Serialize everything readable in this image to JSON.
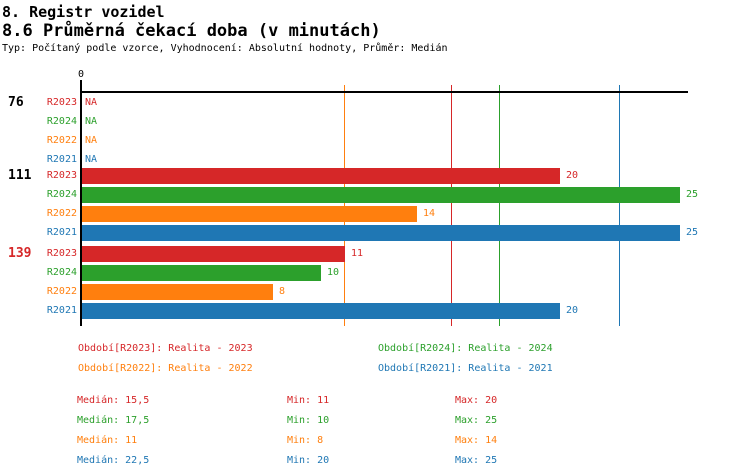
{
  "header": {
    "title": "8. Registr vozidel",
    "subtitle": "8.6 Průměrná čekací doba (v minutách)",
    "meta": "Typ: Počítaný podle vzorce, Vyhodnocení: Absolutní hodnoty, Průměr: Medián"
  },
  "chart_data": {
    "type": "bar",
    "orientation": "horizontal",
    "title": "8.6 Průměrná čekací doba (v minutách)",
    "xlabel": "",
    "ylabel": "",
    "xlim": [
      0,
      25.4
    ],
    "x_axis_zero_label": "0",
    "na_text": "NA",
    "median_reference_lines": true,
    "series": [
      {
        "name": "R2023",
        "color": "#d62728",
        "median": 15.5,
        "min": 11,
        "max": 20
      },
      {
        "name": "R2024",
        "color": "#2ca02c",
        "median": 17.5,
        "min": 10,
        "max": 25
      },
      {
        "name": "R2022",
        "color": "#ff7f0e",
        "median": 11,
        "min": 8,
        "max": 14
      },
      {
        "name": "R2021",
        "color": "#1f77b4",
        "median": 22.5,
        "min": 20,
        "max": 25
      }
    ],
    "groups": [
      {
        "label": "76",
        "label_color": "#000000",
        "values": [
          null,
          null,
          null,
          null
        ],
        "value_labels": [
          "NA",
          "NA",
          "NA",
          "NA"
        ]
      },
      {
        "label": "111",
        "label_color": "#000000",
        "values": [
          20,
          25,
          14,
          25
        ],
        "value_labels": [
          "20",
          "25",
          "14",
          "25"
        ]
      },
      {
        "label": "139",
        "label_color": "#d62728",
        "values": [
          11,
          10,
          8,
          20
        ],
        "value_labels": [
          "11",
          "10",
          "8",
          "20"
        ]
      }
    ]
  },
  "legend": {
    "items": [
      {
        "text": "Období[R2023]: Realita - 2023",
        "color": "#d62728",
        "row": 0,
        "col": 0
      },
      {
        "text": "Období[R2024]: Realita - 2024",
        "color": "#2ca02c",
        "row": 0,
        "col": 1
      },
      {
        "text": "Období[R2022]: Realita - 2022",
        "color": "#ff7f0e",
        "row": 1,
        "col": 0
      },
      {
        "text": "Období[R2021]: Realita - 2021",
        "color": "#1f77b4",
        "row": 1,
        "col": 1
      }
    ]
  },
  "stats": {
    "rows": [
      {
        "series": "R2023",
        "color": "#d62728",
        "median": "Medián: 15,5",
        "min": "Min: 11",
        "max": "Max: 20"
      },
      {
        "series": "R2024",
        "color": "#2ca02c",
        "median": "Medián: 17,5",
        "min": "Min: 10",
        "max": "Max: 25"
      },
      {
        "series": "R2022",
        "color": "#ff7f0e",
        "median": "Medián: 11",
        "min": "Min: 8",
        "max": "Max: 14"
      },
      {
        "series": "R2021",
        "color": "#1f77b4",
        "median": "Medián: 22,5",
        "min": "Min: 20",
        "max": "Max: 25"
      }
    ]
  }
}
